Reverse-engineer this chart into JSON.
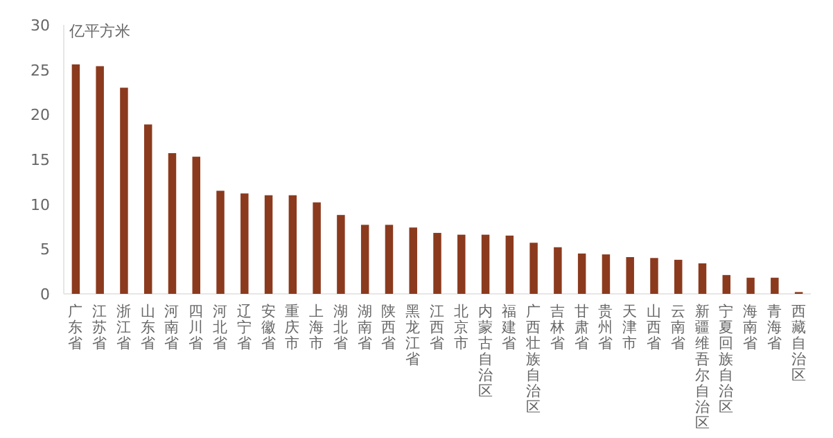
{
  "chart_data": {
    "type": "bar",
    "ylabel": "亿平方米",
    "categories": [
      "广东省",
      "江苏省",
      "浙江省",
      "山东省",
      "河南省",
      "四川省",
      "河北省",
      "辽宁省",
      "安徽省",
      "重庆市",
      "上海市",
      "湖北省",
      "湖南省",
      "陕西省",
      "黑龙江省",
      "江西省",
      "北京市",
      "内蒙古自治区",
      "福建省",
      "广西壮族自治区",
      "吉林省",
      "甘肃省",
      "贵州省",
      "天津市",
      "山西省",
      "云南省",
      "新疆维吾尔自治区",
      "宁夏回族自治区",
      "海南省",
      "青海省",
      "西藏自治区"
    ],
    "values": [
      25.6,
      25.4,
      23.0,
      18.9,
      15.7,
      15.3,
      11.5,
      11.2,
      11.0,
      11.0,
      10.2,
      8.8,
      7.7,
      7.7,
      7.4,
      6.8,
      6.6,
      6.6,
      6.5,
      5.7,
      5.2,
      4.5,
      4.4,
      4.1,
      4.0,
      3.8,
      3.4,
      2.1,
      1.8,
      1.8,
      0.2
    ],
    "color": "#8b3a1e",
    "ylim": [
      0,
      30
    ],
    "yticks": [
      0,
      5,
      10,
      15,
      20,
      25,
      30
    ],
    "grid": false
  }
}
